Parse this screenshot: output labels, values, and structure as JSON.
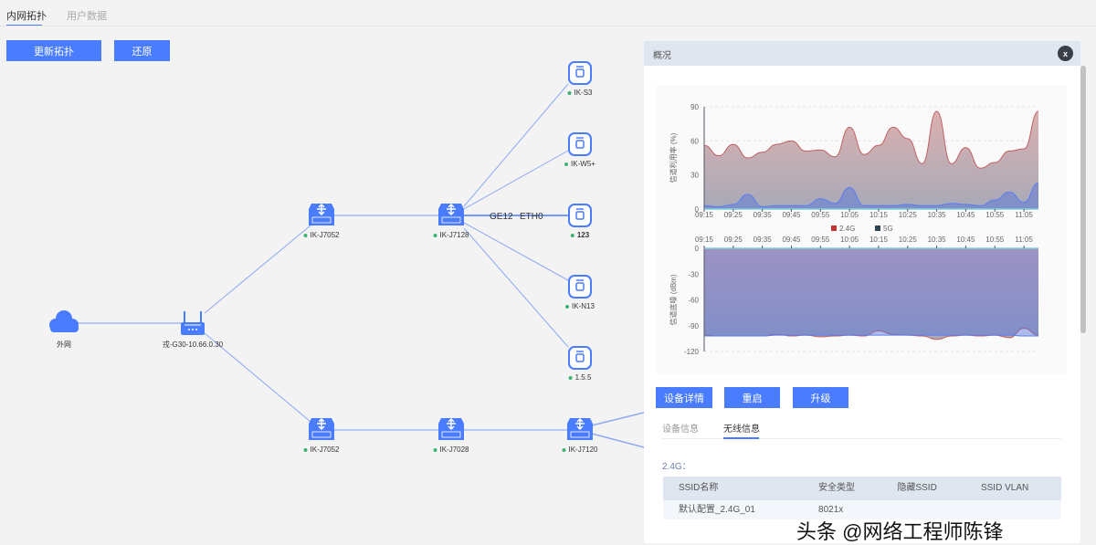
{
  "tabs": [
    {
      "label": "内网拓扑",
      "active": true
    },
    {
      "label": "用户数据",
      "active": false
    }
  ],
  "toolbar": {
    "update_label": "更新拓扑",
    "restore_label": "还原"
  },
  "topology": {
    "nodes": {
      "internet": "外网",
      "router": "戎-G30-10.66.0.30",
      "sw1": "IK-J7052",
      "sw2": "IK-J7128",
      "ap1": "IK-S3",
      "ap2": "IK-W5+",
      "ap3": "123",
      "ap4": "IK-N13",
      "ap5": "1.5.5",
      "sw3": "IK-J7052",
      "sw4": "IK-J7028",
      "sw5": "IK-J7120"
    },
    "link_label_left": "GE12",
    "link_label_right": "ETH0",
    "status_color": "#3cb371",
    "accent": "#4a7cff"
  },
  "panel": {
    "title": "概况",
    "close_label": "x",
    "buttons": {
      "details": "设备详情",
      "reboot": "重启",
      "upgrade": "升级"
    },
    "subtabs": [
      {
        "label": "设备信息",
        "active": false
      },
      {
        "label": "无线信息",
        "active": true
      }
    ],
    "section": "2.4G：",
    "table": {
      "headers": [
        "SSID名称",
        "安全类型",
        "隐藏SSID",
        "SSID VLAN"
      ],
      "rows": [
        [
          "默认配置_2.4G_01",
          "8021x",
          "",
          ""
        ]
      ]
    }
  },
  "watermark": "头条 @网络工程师陈锋",
  "chart_data": [
    {
      "type": "area",
      "ylabel": "信道利用率 (%)",
      "ylim": [
        0,
        90
      ],
      "yticks": [
        0,
        30,
        60,
        90
      ],
      "xticks": [
        "09:15",
        "09:25",
        "09:35",
        "09:45",
        "09:55",
        "10:05",
        "10:15",
        "10:25",
        "10:35",
        "10:45",
        "10:55",
        "11:05"
      ],
      "x": [
        "09:15",
        "09:20",
        "09:25",
        "09:30",
        "09:35",
        "09:40",
        "09:45",
        "09:50",
        "09:55",
        "10:00",
        "10:05",
        "10:10",
        "10:15",
        "10:20",
        "10:25",
        "10:30",
        "10:35",
        "10:40",
        "10:45",
        "10:50",
        "10:55",
        "11:00",
        "11:05",
        "11:10"
      ],
      "legend": "bottom",
      "series": [
        {
          "name": "2.4G",
          "color": "#c23531",
          "values": [
            56,
            47,
            57,
            45,
            50,
            57,
            60,
            51,
            52,
            46,
            72,
            48,
            56,
            72,
            62,
            40,
            86,
            40,
            54,
            36,
            41,
            51,
            53,
            86
          ]
        },
        {
          "name": "5G",
          "color": "#2f4554",
          "values": [
            3,
            2,
            4,
            13,
            2,
            3,
            3,
            3,
            9,
            5,
            19,
            3,
            3,
            3,
            4,
            3,
            3,
            5,
            4,
            3,
            8,
            15,
            6,
            23
          ]
        }
      ]
    },
    {
      "type": "area",
      "ylabel": "信道底噪 (dBm)",
      "ylim": [
        -120,
        0
      ],
      "yticks": [
        0,
        -30,
        -60,
        -90,
        -120
      ],
      "xticks": [
        "09:15",
        "09:25",
        "09:35",
        "09:45",
        "09:55",
        "10:05",
        "10:15",
        "10:25",
        "10:35",
        "10:45",
        "10:55",
        "11:05"
      ],
      "x": [
        "09:15",
        "09:20",
        "09:25",
        "09:30",
        "09:35",
        "09:40",
        "09:45",
        "09:50",
        "09:55",
        "10:00",
        "10:05",
        "10:10",
        "10:15",
        "10:20",
        "10:25",
        "10:30",
        "10:35",
        "10:40",
        "10:45",
        "10:50",
        "10:55",
        "11:00",
        "11:05",
        "11:10"
      ],
      "series": [
        {
          "name": "2.4G",
          "color": "#c23531",
          "values": [
            -101,
            -102,
            -102,
            -102,
            -102,
            -100,
            -102,
            -101,
            -103,
            -102,
            -101,
            -102,
            -96,
            -100,
            -101,
            -102,
            -106,
            -102,
            -101,
            -102,
            -101,
            -104,
            -93,
            -101
          ]
        },
        {
          "name": "5G",
          "color": "#2f4554",
          "values": [
            -102,
            -102,
            -102,
            -102,
            -102,
            -101,
            -101,
            -101,
            -101,
            -101,
            -101,
            -101,
            -101,
            -101,
            -101,
            -101,
            -101,
            -101,
            -101,
            -101,
            -101,
            -101,
            -102,
            -102
          ]
        }
      ]
    }
  ]
}
